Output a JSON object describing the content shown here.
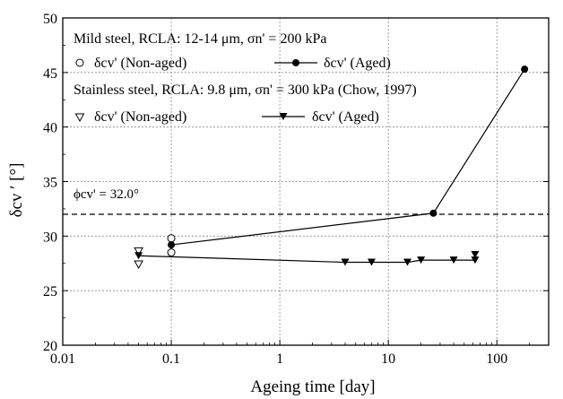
{
  "chart_data": {
    "type": "scatter",
    "xlabel": "Ageing time [day]",
    "ylabel": "δcv ′ [°]",
    "xscale": "log",
    "xlim": [
      0.01,
      300
    ],
    "ylim": [
      20,
      50
    ],
    "x_ticks": [
      "0.01",
      "0.1",
      "1",
      "10",
      "100"
    ],
    "y_ticks": [
      "20",
      "25",
      "30",
      "35",
      "40",
      "45",
      "50"
    ],
    "grid": true,
    "legend_placement": "top-left",
    "legend": {
      "group1_title": "Mild steel, RCLA: 12-14 μm, σn' = 200 kPa",
      "group2_title": "Stainless steel, RCLA: 9.8 μm, σn' = 300 kPa (Chow, 1997)",
      "non_aged_label": "δcv'  (Non-aged)",
      "aged_label": "δcv'  (Aged)"
    },
    "annotation": {
      "text": "ϕcv' = 32.0°",
      "value": 32.0
    },
    "series": [
      {
        "name": "Mild steel δcv' (Non-aged)",
        "marker": "circle-open",
        "line": false,
        "points": [
          [
            0.1,
            29.8
          ],
          [
            0.1,
            28.5
          ]
        ]
      },
      {
        "name": "Mild steel δcv' (Aged)",
        "marker": "circle-filled",
        "line": true,
        "points": [
          [
            0.1,
            29.2
          ],
          [
            26,
            32.1
          ],
          [
            180,
            45.3
          ]
        ]
      },
      {
        "name": "Stainless steel δcv' (Non-aged)",
        "marker": "triangle-down-open",
        "line": false,
        "points": [
          [
            0.05,
            28.6
          ],
          [
            0.05,
            27.4
          ]
        ]
      },
      {
        "name": "Stainless steel δcv' (Aged)",
        "marker": "triangle-down-filled",
        "line": true,
        "points": [
          [
            0.05,
            28.2
          ],
          [
            4,
            27.6
          ],
          [
            7,
            27.6
          ],
          [
            15,
            27.6
          ],
          [
            20,
            27.8
          ],
          [
            40,
            27.8
          ],
          [
            63,
            27.8
          ],
          [
            63,
            28.3
          ]
        ]
      }
    ]
  }
}
